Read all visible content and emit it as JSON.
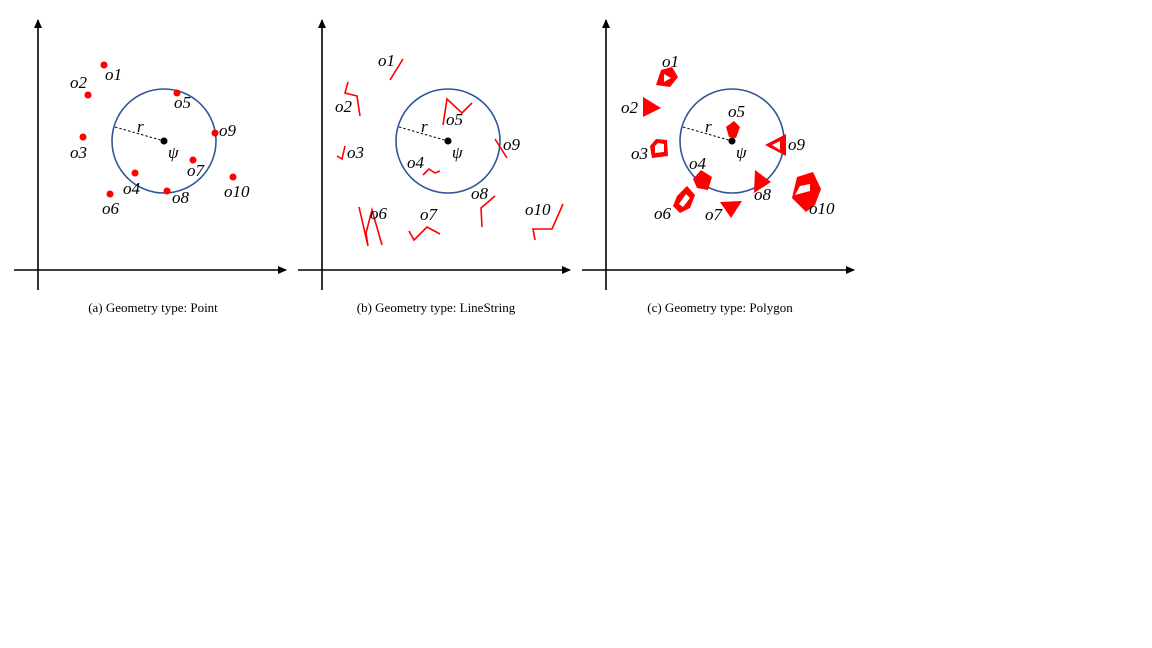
{
  "colors": {
    "circle": "#2f5597",
    "object": "#ff0000",
    "axis": "#000000",
    "center": "#000000"
  },
  "symbols": {
    "radius": "r",
    "center": "ψ"
  },
  "panels": [
    {
      "caption": "(a)  Geometry type: Point",
      "geometry": "point",
      "objects": [
        {
          "label": "o1"
        },
        {
          "label": "o2"
        },
        {
          "label": "o3"
        },
        {
          "label": "o4"
        },
        {
          "label": "o5"
        },
        {
          "label": "o6"
        },
        {
          "label": "o7"
        },
        {
          "label": "o8"
        },
        {
          "label": "o9"
        },
        {
          "label": "o10"
        }
      ]
    },
    {
      "caption": "(b)  Geometry type: LineString",
      "geometry": "linestring",
      "objects": [
        {
          "label": "o1"
        },
        {
          "label": "o2"
        },
        {
          "label": "o3"
        },
        {
          "label": "o4"
        },
        {
          "label": "o5"
        },
        {
          "label": "o6"
        },
        {
          "label": "o7"
        },
        {
          "label": "o8"
        },
        {
          "label": "o9"
        },
        {
          "label": "o10"
        }
      ]
    },
    {
      "caption": "(c)  Geometry type: Polygon",
      "geometry": "polygon",
      "objects": [
        {
          "label": "o1"
        },
        {
          "label": "o2"
        },
        {
          "label": "o3"
        },
        {
          "label": "o4"
        },
        {
          "label": "o5"
        },
        {
          "label": "o6"
        },
        {
          "label": "o7"
        },
        {
          "label": "o8"
        },
        {
          "label": "o9"
        },
        {
          "label": "o10"
        }
      ]
    }
  ]
}
